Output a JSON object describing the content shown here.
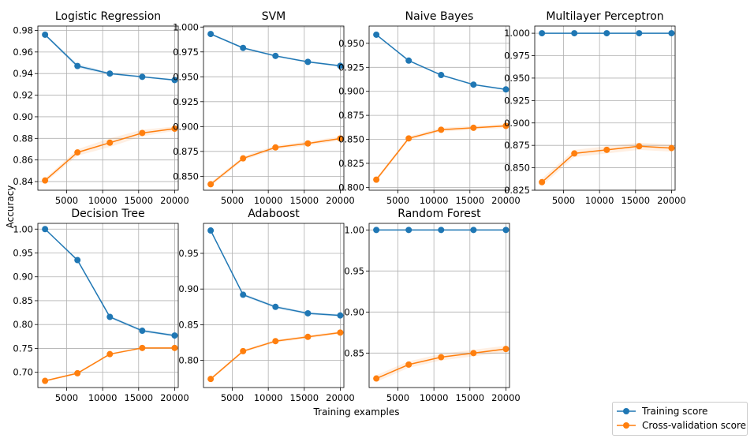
{
  "figure": {
    "xlabel": "Training examples",
    "ylabel": "Accuracy",
    "legend": {
      "placement": "bottom-right",
      "entries": [
        {
          "label": "Training score",
          "color": "#1f77b4"
        },
        {
          "label": "Cross-validation score",
          "color": "#ff7f0e"
        }
      ]
    }
  },
  "chart_data": [
    {
      "type": "line",
      "title": "Logistic Regression",
      "x": [
        2000,
        6500,
        11000,
        15500,
        20000
      ],
      "xlim": [
        1000,
        20500
      ],
      "ylim": [
        0.832,
        0.984
      ],
      "xticks": [
        5000,
        10000,
        15000,
        20000
      ],
      "xtick_labels": [
        "5000",
        "10000",
        "15000",
        "20000"
      ],
      "yticks": [
        0.84,
        0.86,
        0.88,
        0.9,
        0.92,
        0.94,
        0.96,
        0.98
      ],
      "ytick_labels": [
        "0.84",
        "0.86",
        "0.88",
        "0.90",
        "0.92",
        "0.94",
        "0.96",
        "0.98"
      ],
      "grid": true,
      "series": [
        {
          "name": "Training score",
          "values": [
            0.976,
            0.947,
            0.94,
            0.937,
            0.934
          ],
          "std": [
            0.001,
            0.002,
            0.001,
            0.001,
            0.001
          ]
        },
        {
          "name": "Cross-validation score",
          "values": [
            0.841,
            0.867,
            0.876,
            0.885,
            0.889
          ],
          "std": [
            0.002,
            0.003,
            0.004,
            0.003,
            0.002
          ]
        }
      ]
    },
    {
      "type": "line",
      "title": "SVM",
      "x": [
        2000,
        6500,
        11000,
        15500,
        20000
      ],
      "xlim": [
        1000,
        20500
      ],
      "ylim": [
        0.836,
        1.001
      ],
      "xticks": [
        5000,
        10000,
        15000,
        20000
      ],
      "xtick_labels": [
        "5000",
        "10000",
        "15000",
        "20000"
      ],
      "yticks": [
        0.85,
        0.875,
        0.9,
        0.925,
        0.95,
        0.975,
        1.0
      ],
      "ytick_labels": [
        "0.850",
        "0.875",
        "0.900",
        "0.925",
        "0.950",
        "0.975",
        "1.000"
      ],
      "grid": true,
      "series": [
        {
          "name": "Training score",
          "values": [
            0.993,
            0.979,
            0.971,
            0.965,
            0.961
          ],
          "std": [
            0.001,
            0.001,
            0.001,
            0.001,
            0.001
          ]
        },
        {
          "name": "Cross-validation score",
          "values": [
            0.842,
            0.868,
            0.879,
            0.883,
            0.888
          ],
          "std": [
            0.002,
            0.002,
            0.002,
            0.002,
            0.002
          ]
        }
      ]
    },
    {
      "type": "line",
      "title": "Naive Bayes",
      "x": [
        2000,
        6500,
        11000,
        15500,
        20000
      ],
      "xlim": [
        1000,
        20500
      ],
      "ylim": [
        0.797,
        0.968
      ],
      "xticks": [
        5000,
        10000,
        15000,
        20000
      ],
      "xtick_labels": [
        "5000",
        "10000",
        "15000",
        "20000"
      ],
      "yticks": [
        0.8,
        0.825,
        0.85,
        0.875,
        0.9,
        0.925,
        0.95
      ],
      "ytick_labels": [
        "0.800",
        "0.825",
        "0.850",
        "0.875",
        "0.900",
        "0.925",
        "0.950"
      ],
      "grid": true,
      "series": [
        {
          "name": "Training score",
          "values": [
            0.959,
            0.932,
            0.917,
            0.907,
            0.902
          ],
          "std": [
            0.001,
            0.001,
            0.001,
            0.001,
            0.001
          ]
        },
        {
          "name": "Cross-validation score",
          "values": [
            0.808,
            0.851,
            0.86,
            0.862,
            0.864
          ],
          "std": [
            0.002,
            0.002,
            0.002,
            0.002,
            0.002
          ]
        }
      ]
    },
    {
      "type": "line",
      "title": "Multilayer Perceptron",
      "x": [
        2000,
        6500,
        11000,
        15500,
        20000
      ],
      "xlim": [
        1000,
        20500
      ],
      "ylim": [
        0.825,
        1.008
      ],
      "xticks": [
        5000,
        10000,
        15000,
        20000
      ],
      "xtick_labels": [
        "5000",
        "10000",
        "15000",
        "20000"
      ],
      "yticks": [
        0.825,
        0.85,
        0.875,
        0.9,
        0.925,
        0.95,
        0.975,
        1.0
      ],
      "ytick_labels": [
        "0.825",
        "0.850",
        "0.875",
        "0.900",
        "0.925",
        "0.950",
        "0.975",
        "1.000"
      ],
      "grid": true,
      "series": [
        {
          "name": "Training score",
          "values": [
            1.0,
            1.0,
            1.0,
            1.0,
            1.0
          ],
          "std": [
            0.0,
            0.0,
            0.0,
            0.0,
            0.0
          ]
        },
        {
          "name": "Cross-validation score",
          "values": [
            0.834,
            0.866,
            0.87,
            0.874,
            0.872
          ],
          "std": [
            0.004,
            0.004,
            0.004,
            0.004,
            0.004
          ]
        }
      ]
    },
    {
      "type": "line",
      "title": "Decision Tree",
      "x": [
        2000,
        6500,
        11000,
        15500,
        20000
      ],
      "xlim": [
        1000,
        20500
      ],
      "ylim": [
        0.668,
        1.012
      ],
      "xticks": [
        5000,
        10000,
        15000,
        20000
      ],
      "xtick_labels": [
        "5000",
        "10000",
        "15000",
        "20000"
      ],
      "yticks": [
        0.7,
        0.75,
        0.8,
        0.85,
        0.9,
        0.95,
        1.0
      ],
      "ytick_labels": [
        "0.70",
        "0.75",
        "0.80",
        "0.85",
        "0.90",
        "0.95",
        "1.00"
      ],
      "grid": true,
      "series": [
        {
          "name": "Training score",
          "values": [
            1.0,
            0.935,
            0.816,
            0.787,
            0.777
          ],
          "std": [
            0.0,
            0.003,
            0.003,
            0.003,
            0.003
          ]
        },
        {
          "name": "Cross-validation score",
          "values": [
            0.682,
            0.698,
            0.738,
            0.751,
            0.751
          ],
          "std": [
            0.002,
            0.002,
            0.002,
            0.002,
            0.002
          ]
        }
      ]
    },
    {
      "type": "line",
      "title": "Adaboost",
      "x": [
        2000,
        6500,
        11000,
        15500,
        20000
      ],
      "xlim": [
        1000,
        20500
      ],
      "ylim": [
        0.762,
        0.992
      ],
      "xticks": [
        5000,
        10000,
        15000,
        20000
      ],
      "xtick_labels": [
        "5000",
        "10000",
        "15000",
        "20000"
      ],
      "yticks": [
        0.8,
        0.85,
        0.9,
        0.95
      ],
      "ytick_labels": [
        "0.80",
        "0.85",
        "0.90",
        "0.95"
      ],
      "grid": true,
      "series": [
        {
          "name": "Training score",
          "values": [
            0.982,
            0.892,
            0.875,
            0.866,
            0.863
          ],
          "std": [
            0.002,
            0.002,
            0.002,
            0.002,
            0.002
          ]
        },
        {
          "name": "Cross-validation score",
          "values": [
            0.774,
            0.813,
            0.827,
            0.833,
            0.839
          ],
          "std": [
            0.002,
            0.002,
            0.002,
            0.002,
            0.002
          ]
        }
      ]
    },
    {
      "type": "line",
      "title": "Random Forest",
      "x": [
        2000,
        6500,
        11000,
        15500,
        20000
      ],
      "xlim": [
        1000,
        20500
      ],
      "ylim": [
        0.808,
        1.008
      ],
      "xticks": [
        5000,
        10000,
        15000,
        20000
      ],
      "xtick_labels": [
        "5000",
        "10000",
        "15000",
        "20000"
      ],
      "yticks": [
        0.85,
        0.9,
        0.95,
        1.0
      ],
      "ytick_labels": [
        "0.85",
        "0.90",
        "0.95",
        "1.00"
      ],
      "grid": true,
      "series": [
        {
          "name": "Training score",
          "values": [
            1.0,
            1.0,
            1.0,
            1.0,
            1.0
          ],
          "std": [
            0.0,
            0.0,
            0.0,
            0.0,
            0.0
          ]
        },
        {
          "name": "Cross-validation score",
          "values": [
            0.819,
            0.836,
            0.845,
            0.85,
            0.855
          ],
          "std": [
            0.004,
            0.004,
            0.004,
            0.004,
            0.004
          ]
        }
      ]
    }
  ]
}
